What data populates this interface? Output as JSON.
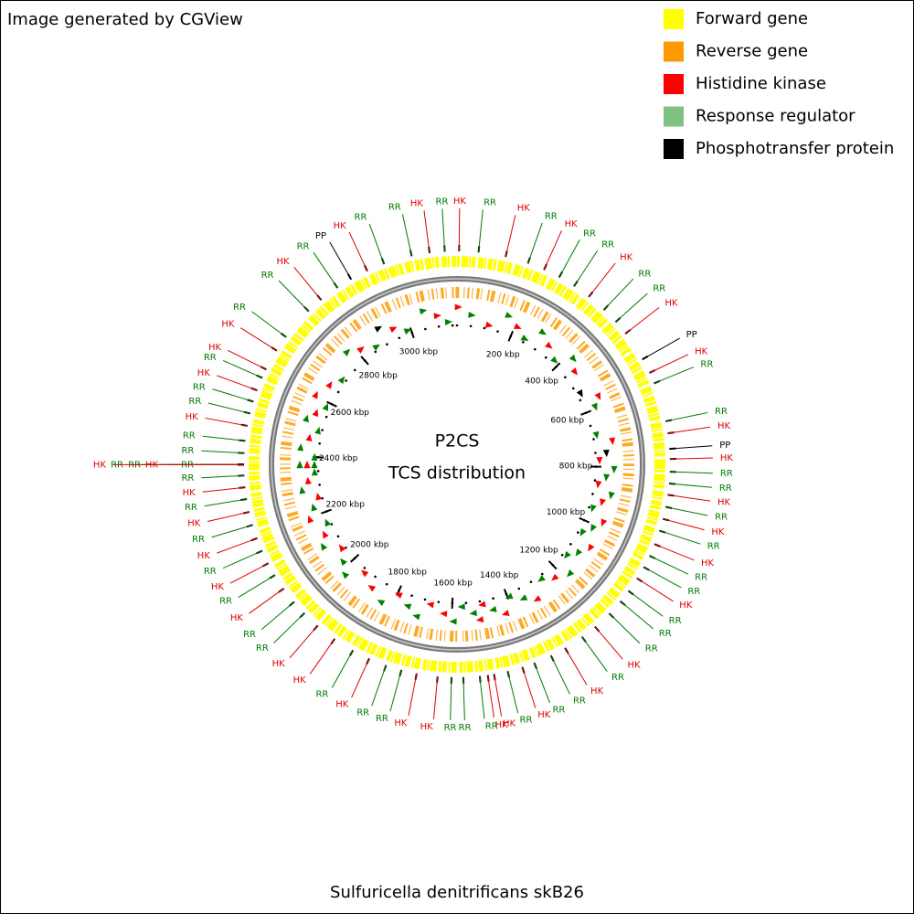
{
  "credit": "Image generated by CGView",
  "legend": [
    {
      "name": "Forward gene",
      "color": "#ffff00"
    },
    {
      "name": "Reverse gene",
      "color": "#ff9900"
    },
    {
      "name": "Histidine kinase",
      "color": "#ff0000"
    },
    {
      "name": "Response regulator",
      "color": "#80c080"
    },
    {
      "name": "Phosphotransfer protein",
      "color": "#000000"
    }
  ],
  "map": {
    "title": "P2CS",
    "subtitle": "TCS distribution",
    "genome_name": "Sulfuricella denitrificans skB26",
    "length_kbp": 3166,
    "ticks": [
      {
        "value": 200,
        "label": "200 kbp"
      },
      {
        "value": 400,
        "label": "400 kbp"
      },
      {
        "value": 600,
        "label": "600 kbp"
      },
      {
        "value": 800,
        "label": "800 kbp"
      },
      {
        "value": 1000,
        "label": "1000 kbp"
      },
      {
        "value": 1200,
        "label": "1200 kbp"
      },
      {
        "value": 1400,
        "label": "1400 kbp"
      },
      {
        "value": 1600,
        "label": "1600 kbp"
      },
      {
        "value": 1800,
        "label": "1800 kbp"
      },
      {
        "value": 2000,
        "label": "2000 kbp"
      },
      {
        "value": 2200,
        "label": "2200 kbp"
      },
      {
        "value": 2400,
        "label": "2400 kbp"
      },
      {
        "value": 2600,
        "label": "2600 kbp"
      },
      {
        "value": 2800,
        "label": "2800 kbp"
      },
      {
        "value": 3000,
        "label": "3000 kbp"
      }
    ],
    "label_colors": {
      "HK": "#e00000",
      "RR": "#007a00",
      "PP": "#000000"
    },
    "features": [
      {
        "label": "HK",
        "position_kbp": 5
      },
      {
        "label": "RR",
        "position_kbp": 51
      },
      {
        "label": "HK",
        "position_kbp": 116
      },
      {
        "label": "RR",
        "position_kbp": 171
      },
      {
        "label": "HK",
        "position_kbp": 212
      },
      {
        "label": "RR",
        "position_kbp": 252
      },
      {
        "label": "RR",
        "position_kbp": 293
      },
      {
        "label": "HK",
        "position_kbp": 336
      },
      {
        "label": "RR",
        "position_kbp": 383
      },
      {
        "label": "RR",
        "position_kbp": 423
      },
      {
        "label": "HK",
        "position_kbp": 459
      },
      {
        "label": "PP",
        "position_kbp": 532
      },
      {
        "label": "HK",
        "position_kbp": 568
      },
      {
        "label": "RR",
        "position_kbp": 595
      },
      {
        "label": "RR",
        "position_kbp": 689
      },
      {
        "label": "HK",
        "position_kbp": 718
      },
      {
        "label": "PP",
        "position_kbp": 755
      },
      {
        "label": "HK",
        "position_kbp": 779
      },
      {
        "label": "RR",
        "position_kbp": 809
      },
      {
        "label": "RR",
        "position_kbp": 837
      },
      {
        "label": "HK",
        "position_kbp": 864
      },
      {
        "label": "RR",
        "position_kbp": 893
      },
      {
        "label": "HK",
        "position_kbp": 922
      },
      {
        "label": "RR",
        "position_kbp": 951
      },
      {
        "label": "HK",
        "position_kbp": 985
      },
      {
        "label": "RR",
        "position_kbp": 1015
      },
      {
        "label": "RR",
        "position_kbp": 1045
      },
      {
        "label": "HK",
        "position_kbp": 1076
      },
      {
        "label": "RR",
        "position_kbp": 1112
      },
      {
        "label": "RR",
        "position_kbp": 1143
      },
      {
        "label": "RR",
        "position_kbp": 1182
      },
      {
        "label": "HK",
        "position_kbp": 1228
      },
      {
        "label": "RR",
        "position_kbp": 1267
      },
      {
        "label": "HK",
        "position_kbp": 1315
      },
      {
        "label": "RR",
        "position_kbp": 1353
      },
      {
        "label": "RR",
        "position_kbp": 1396
      },
      {
        "label": "HK",
        "position_kbp": 1426
      },
      {
        "label": "RR",
        "position_kbp": 1462
      },
      {
        "label": "HK",
        "position_kbp": 1495
      },
      {
        "label": "HK",
        "position_kbp": 1510
      },
      {
        "label": "RR",
        "position_kbp": 1529
      },
      {
        "label": "RR",
        "position_kbp": 1568
      },
      {
        "label": "RR",
        "position_kbp": 1596
      },
      {
        "label": "HK",
        "position_kbp": 1629
      },
      {
        "label": "HK",
        "position_kbp": 1679
      },
      {
        "label": "RR",
        "position_kbp": 1716
      },
      {
        "label": "RR",
        "position_kbp": 1754
      },
      {
        "label": "HK",
        "position_kbp": 1797
      },
      {
        "label": "RR",
        "position_kbp": 1840
      },
      {
        "label": "HK",
        "position_kbp": 1891
      },
      {
        "label": "HK",
        "position_kbp": 1942
      },
      {
        "label": "RR",
        "position_kbp": 1985
      },
      {
        "label": "RR",
        "position_kbp": 2021
      },
      {
        "label": "HK",
        "position_kbp": 2061
      },
      {
        "label": "RR",
        "position_kbp": 2099
      },
      {
        "label": "HK",
        "position_kbp": 2131
      },
      {
        "label": "RR",
        "position_kbp": 2164
      },
      {
        "label": "HK",
        "position_kbp": 2196
      },
      {
        "label": "RR",
        "position_kbp": 2229
      },
      {
        "label": "HK",
        "position_kbp": 2261
      },
      {
        "label": "RR",
        "position_kbp": 2292
      },
      {
        "label": "HK",
        "position_kbp": 2320
      },
      {
        "label": "RR",
        "position_kbp": 2348
      },
      {
        "label": "RR",
        "position_kbp": 2374
      },
      {
        "label": "HK",
        "position_kbp": 2374
      },
      {
        "label": "RR",
        "position_kbp": 2374
      },
      {
        "label": "RR",
        "position_kbp": 2374
      },
      {
        "label": "HK",
        "position_kbp": 2374
      },
      {
        "label": "RR",
        "position_kbp": 2401
      },
      {
        "label": "RR",
        "position_kbp": 2430
      },
      {
        "label": "HK",
        "position_kbp": 2466
      },
      {
        "label": "RR",
        "position_kbp": 2496
      },
      {
        "label": "RR",
        "position_kbp": 2525
      },
      {
        "label": "HK",
        "position_kbp": 2553
      },
      {
        "label": "RR",
        "position_kbp": 2585
      },
      {
        "label": "HK",
        "position_kbp": 2607
      },
      {
        "label": "HK",
        "position_kbp": 2658
      },
      {
        "label": "RR",
        "position_kbp": 2697
      },
      {
        "label": "RR",
        "position_kbp": 2778
      },
      {
        "label": "HK",
        "position_kbp": 2818
      },
      {
        "label": "RR",
        "position_kbp": 2866
      },
      {
        "label": "PP",
        "position_kbp": 2904
      },
      {
        "label": "HK",
        "position_kbp": 2947
      },
      {
        "label": "RR",
        "position_kbp": 2990
      },
      {
        "label": "RR",
        "position_kbp": 3058
      },
      {
        "label": "HK",
        "position_kbp": 3101
      },
      {
        "label": "RR",
        "position_kbp": 3137
      }
    ]
  }
}
